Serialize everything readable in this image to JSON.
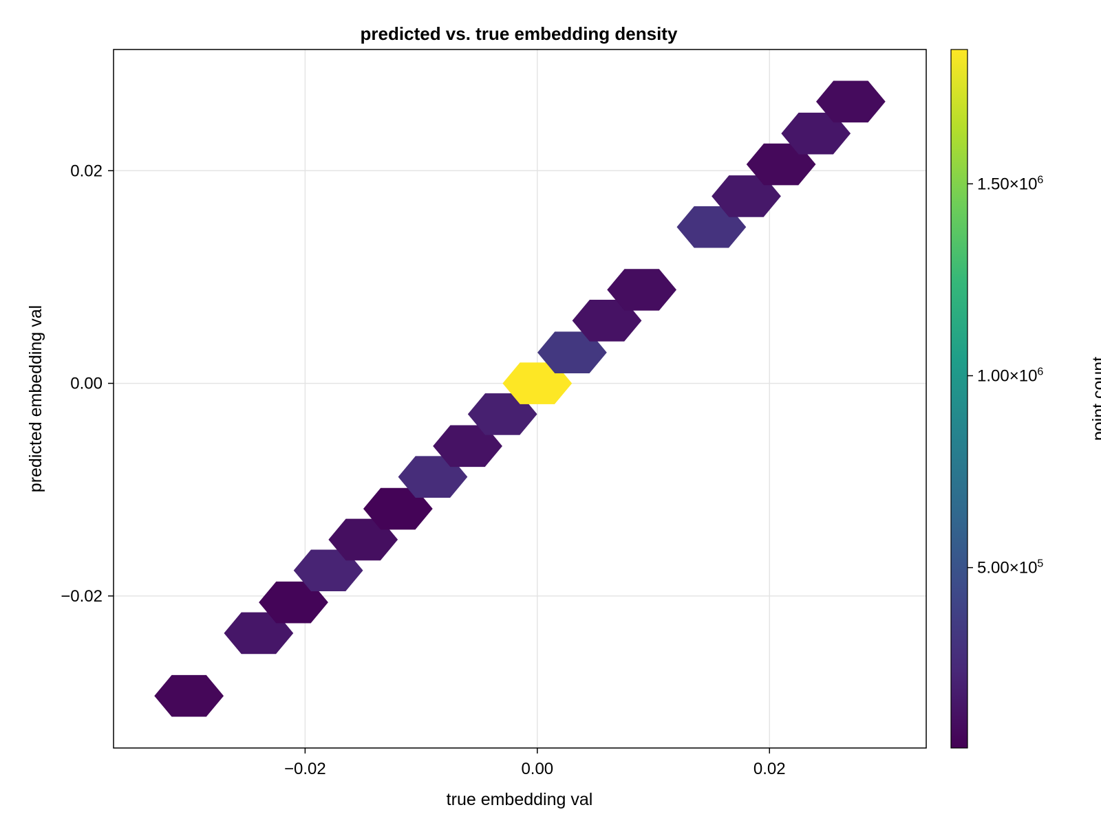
{
  "chart_data": {
    "type": "hexbin",
    "title": "predicted vs. true embedding density",
    "xlabel": "true embedding val",
    "ylabel": "predicted embedding val",
    "xlim": [
      -0.0365,
      0.0335
    ],
    "ylim": [
      -0.0343,
      0.0314
    ],
    "x_ticks": [
      -0.02,
      0.0,
      0.02
    ],
    "x_tick_labels": [
      "−0.02",
      "0.00",
      "0.02"
    ],
    "y_ticks": [
      -0.02,
      0.0,
      0.02
    ],
    "y_tick_labels": [
      "−0.02",
      "0.00",
      "0.02"
    ],
    "grid": true,
    "colormap": "viridis",
    "colormap_stops": [
      "#440154",
      "#482878",
      "#3e4989",
      "#31688e",
      "#26828e",
      "#1f9e89",
      "#35b779",
      "#6ece58",
      "#b5de2b",
      "#fde725"
    ],
    "colorbar": {
      "label": "point count",
      "range": [
        30000,
        1850000
      ],
      "ticks": [
        500000,
        1000000,
        1500000
      ],
      "tick_labels": [
        {
          "mantissa": "5.00×10",
          "exp": "5"
        },
        {
          "mantissa": "1.00×10",
          "exp": "6"
        },
        {
          "mantissa": "1.50×10",
          "exp": "6"
        }
      ]
    },
    "points": [
      {
        "x": -0.03,
        "y": -0.0294,
        "count": 60000
      },
      {
        "x": -0.024,
        "y": -0.0235,
        "count": 140000
      },
      {
        "x": -0.021,
        "y": -0.0206,
        "count": 50000
      },
      {
        "x": -0.018,
        "y": -0.0176,
        "count": 210000
      },
      {
        "x": -0.015,
        "y": -0.0147,
        "count": 100000
      },
      {
        "x": -0.012,
        "y": -0.0118,
        "count": 45000
      },
      {
        "x": -0.009,
        "y": -0.0088,
        "count": 260000
      },
      {
        "x": -0.006,
        "y": -0.0059,
        "count": 120000
      },
      {
        "x": -0.003,
        "y": -0.0029,
        "count": 190000
      },
      {
        "x": 0.0,
        "y": 0.0,
        "count": 1850000
      },
      {
        "x": 0.003,
        "y": 0.0029,
        "count": 330000
      },
      {
        "x": 0.006,
        "y": 0.0059,
        "count": 120000
      },
      {
        "x": 0.009,
        "y": 0.0088,
        "count": 90000
      },
      {
        "x": 0.015,
        "y": 0.0147,
        "count": 300000
      },
      {
        "x": 0.018,
        "y": 0.0176,
        "count": 150000
      },
      {
        "x": 0.021,
        "y": 0.0206,
        "count": 70000
      },
      {
        "x": 0.024,
        "y": 0.0235,
        "count": 140000
      },
      {
        "x": 0.027,
        "y": 0.0265,
        "count": 80000
      }
    ]
  }
}
